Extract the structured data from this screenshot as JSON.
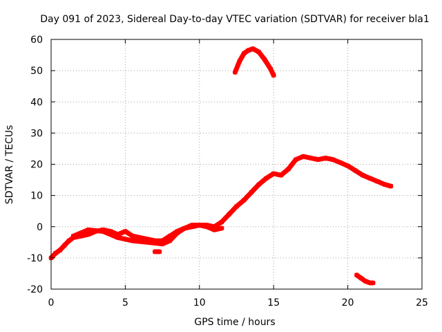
{
  "chart_data": {
    "type": "scatter",
    "title": "Day 091 of 2023, Sidereal Day-to-day VTEC variation (SDTVAR) for receiver bla1",
    "xlabel": "GPS time / hours",
    "ylabel": "SDTVAR / TECUs",
    "xlim": [
      0,
      25
    ],
    "ylim": [
      -20,
      60
    ],
    "xticks": [
      "0",
      "5",
      "10",
      "15",
      "20",
      "25"
    ],
    "yticks": [
      "-20",
      "-10",
      "0",
      "10",
      "20",
      "30",
      "40",
      "50",
      "60"
    ],
    "grid": true,
    "color": "#ff0000",
    "series": [
      {
        "name": "main-track",
        "x": [
          0.0,
          0.3,
          0.6,
          0.9,
          1.2,
          1.5,
          2.0,
          2.5,
          3.0,
          3.5,
          4.0,
          4.5,
          5.0,
          5.5,
          6.0,
          6.5,
          7.0,
          7.5,
          8.0,
          8.5,
          9.0,
          9.5,
          10.0,
          10.5,
          11.0,
          11.5,
          12.0,
          12.5,
          13.0,
          13.5,
          14.0,
          14.5,
          15.0,
          15.5,
          16.0,
          16.5,
          17.0,
          17.5,
          18.0,
          18.5,
          19.0,
          19.5,
          20.0,
          20.5,
          21.0,
          21.5,
          22.0,
          22.5,
          22.9
        ],
        "y": [
          -10,
          -8.5,
          -7.5,
          -6,
          -4.5,
          -3.5,
          -3,
          -2.5,
          -1.5,
          -1,
          -1.5,
          -2.5,
          -1.5,
          -3,
          -3.5,
          -4,
          -4.5,
          -4.5,
          -3,
          -1.5,
          -0.5,
          0,
          0.5,
          0.5,
          0,
          1.5,
          4,
          6.5,
          8.5,
          11,
          13.5,
          15.5,
          17,
          16.5,
          18.5,
          21.5,
          22.5,
          22,
          21.5,
          22,
          21.5,
          20.5,
          19.5,
          18,
          16.5,
          15.5,
          14.5,
          13.5,
          13
        ]
      },
      {
        "name": "lower-branch",
        "x": [
          1.5,
          2.5,
          3.5,
          4.5,
          5.5,
          6.5,
          7.5,
          8.0,
          8.5,
          9.0,
          9.5,
          10.0,
          10.5,
          11.0,
          11.5
        ],
        "y": [
          -3,
          -1,
          -1.5,
          -3.5,
          -4.5,
          -5,
          -5.5,
          -4.5,
          -2,
          -0.5,
          0.5,
          0.5,
          0,
          -1,
          -0.5
        ]
      },
      {
        "name": "upper-arc",
        "x": [
          12.4,
          12.7,
          13.0,
          13.3,
          13.6,
          14.0,
          14.4,
          14.8,
          15.0
        ],
        "y": [
          49.5,
          53,
          55.5,
          56.5,
          57,
          56,
          53.5,
          50.5,
          48.5
        ]
      },
      {
        "name": "tail-segment",
        "x": [
          20.6,
          20.9,
          21.2,
          21.5,
          21.7
        ],
        "y": [
          -15.5,
          -16.5,
          -17.5,
          -18,
          -18
        ]
      },
      {
        "name": "small-blob",
        "x": [
          7.0,
          7.3
        ],
        "y": [
          -8,
          -8
        ]
      }
    ]
  }
}
